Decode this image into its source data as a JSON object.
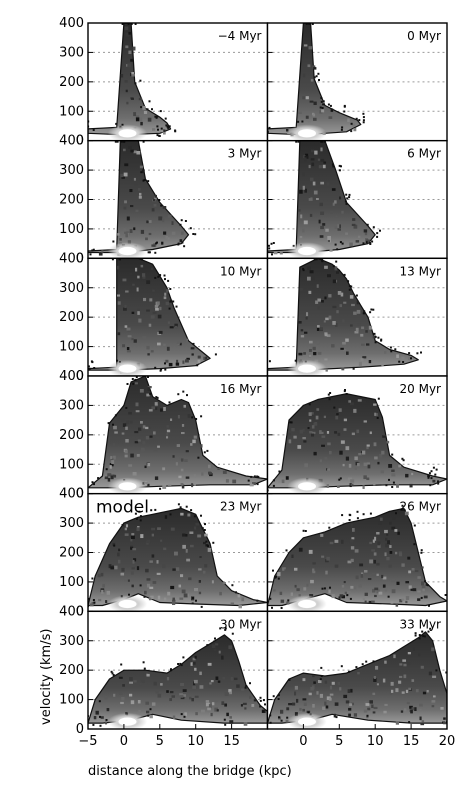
{
  "chart_data": {
    "type": "heatmap",
    "description_note": "",
    "xlabel": "distance along the bridge (kpc)",
    "ylabel": "velocity (km/s)",
    "xlim": [
      -5,
      20
    ],
    "ylim": [
      0,
      400
    ],
    "x_ticks": [
      -5,
      0,
      5,
      10,
      15,
      20
    ],
    "y_ticks": [
      0,
      100,
      200,
      300,
      400
    ],
    "grid": "horizontal dashed at 100, 200, 300 km/s",
    "colormap": "white-gray-black",
    "panels": [
      {
        "label": "−4 Myr",
        "model": false,
        "envelope": [
          [
            -5,
            40
          ],
          [
            -1,
            45
          ],
          [
            0,
            420
          ],
          [
            1,
            420
          ],
          [
            1.5,
            200
          ],
          [
            3,
            110
          ],
          [
            5,
            80
          ],
          [
            6,
            60
          ],
          [
            6.5,
            40
          ],
          [
            5,
            25
          ],
          [
            0,
            20
          ],
          [
            -5,
            25
          ]
        ]
      },
      {
        "label": "0 Myr",
        "model": false,
        "envelope": [
          [
            -5,
            40
          ],
          [
            -1,
            45
          ],
          [
            0,
            420
          ],
          [
            1,
            420
          ],
          [
            1.5,
            210
          ],
          [
            3,
            120
          ],
          [
            5,
            95
          ],
          [
            7.5,
            70
          ],
          [
            8,
            55
          ],
          [
            6,
            30
          ],
          [
            0,
            20
          ],
          [
            -5,
            25
          ]
        ]
      },
      {
        "label": "3 Myr",
        "model": false,
        "envelope": [
          [
            -5,
            25
          ],
          [
            -1,
            30
          ],
          [
            -0.5,
            420
          ],
          [
            2,
            420
          ],
          [
            3,
            270
          ],
          [
            5,
            190
          ],
          [
            8,
            110
          ],
          [
            9,
            80
          ],
          [
            8,
            50
          ],
          [
            4,
            30
          ],
          [
            0,
            20
          ],
          [
            -5,
            20
          ]
        ]
      },
      {
        "label": "6 Myr",
        "model": false,
        "envelope": [
          [
            -5,
            25
          ],
          [
            -1,
            30
          ],
          [
            -0.5,
            420
          ],
          [
            3,
            400
          ],
          [
            4.5,
            300
          ],
          [
            6,
            190
          ],
          [
            9,
            110
          ],
          [
            10,
            80
          ],
          [
            9,
            50
          ],
          [
            5,
            30
          ],
          [
            0,
            20
          ],
          [
            -5,
            20
          ]
        ]
      },
      {
        "label": "10 Myr",
        "model": false,
        "envelope": [
          [
            -5,
            25
          ],
          [
            -1,
            30
          ],
          [
            -1,
            410
          ],
          [
            2,
            400
          ],
          [
            4,
            380
          ],
          [
            5,
            340
          ],
          [
            6,
            300
          ],
          [
            7,
            230
          ],
          [
            9,
            120
          ],
          [
            11,
            80
          ],
          [
            12,
            60
          ],
          [
            10,
            35
          ],
          [
            5,
            25
          ],
          [
            0,
            20
          ],
          [
            -5,
            20
          ]
        ]
      },
      {
        "label": "13 Myr",
        "model": false,
        "envelope": [
          [
            -5,
            25
          ],
          [
            -1,
            30
          ],
          [
            -0.5,
            370
          ],
          [
            2,
            400
          ],
          [
            4,
            380
          ],
          [
            5,
            360
          ],
          [
            6,
            330
          ],
          [
            7,
            280
          ],
          [
            8,
            240
          ],
          [
            9,
            200
          ],
          [
            10,
            120
          ],
          [
            12,
            90
          ],
          [
            15,
            70
          ],
          [
            16,
            55
          ],
          [
            14,
            40
          ],
          [
            8,
            30
          ],
          [
            0,
            20
          ],
          [
            -5,
            20
          ]
        ]
      },
      {
        "label": "16 Myr",
        "model": false,
        "envelope": [
          [
            -5,
            20
          ],
          [
            -3,
            60
          ],
          [
            -2,
            240
          ],
          [
            0,
            300
          ],
          [
            1,
            380
          ],
          [
            3,
            400
          ],
          [
            4,
            330
          ],
          [
            6,
            300
          ],
          [
            8,
            320
          ],
          [
            9,
            310
          ],
          [
            10,
            250
          ],
          [
            11,
            130
          ],
          [
            13,
            90
          ],
          [
            17,
            60
          ],
          [
            20,
            50
          ],
          [
            18,
            30
          ],
          [
            12,
            30
          ],
          [
            5,
            25
          ],
          [
            0,
            20
          ],
          [
            -5,
            20
          ]
        ]
      },
      {
        "label": "20 Myr",
        "model": false,
        "envelope": [
          [
            -5,
            20
          ],
          [
            -3,
            80
          ],
          [
            -2,
            250
          ],
          [
            0,
            300
          ],
          [
            2,
            320
          ],
          [
            4,
            330
          ],
          [
            6,
            340
          ],
          [
            8,
            330
          ],
          [
            10,
            320
          ],
          [
            11,
            260
          ],
          [
            12,
            130
          ],
          [
            14,
            90
          ],
          [
            18,
            60
          ],
          [
            20,
            50
          ],
          [
            18,
            30
          ],
          [
            12,
            30
          ],
          [
            5,
            25
          ],
          [
            0,
            20
          ],
          [
            -5,
            20
          ]
        ]
      },
      {
        "label": "23 Myr",
        "model": true,
        "envelope": [
          [
            -5,
            20
          ],
          [
            -4,
            120
          ],
          [
            -2,
            230
          ],
          [
            0,
            300
          ],
          [
            2,
            320
          ],
          [
            4,
            330
          ],
          [
            6,
            340
          ],
          [
            8,
            350
          ],
          [
            10,
            330
          ],
          [
            11,
            280
          ],
          [
            12,
            230
          ],
          [
            13,
            120
          ],
          [
            15,
            70
          ],
          [
            18,
            40
          ],
          [
            20,
            30
          ],
          [
            16,
            20
          ],
          [
            10,
            25
          ],
          [
            5,
            30
          ],
          [
            2,
            60
          ],
          [
            0,
            40
          ],
          [
            -3,
            20
          ],
          [
            -5,
            20
          ]
        ]
      },
      {
        "label": "26 Myr",
        "model": false,
        "envelope": [
          [
            -5,
            20
          ],
          [
            -4,
            120
          ],
          [
            -2,
            200
          ],
          [
            0,
            250
          ],
          [
            3,
            270
          ],
          [
            6,
            300
          ],
          [
            8,
            310
          ],
          [
            10,
            320
          ],
          [
            12,
            340
          ],
          [
            14,
            350
          ],
          [
            15,
            300
          ],
          [
            16,
            200
          ],
          [
            17,
            100
          ],
          [
            19,
            50
          ],
          [
            20,
            35
          ],
          [
            17,
            20
          ],
          [
            12,
            25
          ],
          [
            6,
            30
          ],
          [
            3,
            60
          ],
          [
            0,
            40
          ],
          [
            -3,
            20
          ],
          [
            -5,
            20
          ]
        ]
      },
      {
        "label": "30 Myr",
        "model": false,
        "envelope": [
          [
            -5,
            20
          ],
          [
            -4,
            100
          ],
          [
            -2,
            170
          ],
          [
            0,
            200
          ],
          [
            3,
            200
          ],
          [
            6,
            190
          ],
          [
            8,
            220
          ],
          [
            10,
            260
          ],
          [
            12,
            290
          ],
          [
            14,
            320
          ],
          [
            15,
            300
          ],
          [
            16,
            230
          ],
          [
            17,
            150
          ],
          [
            19,
            80
          ],
          [
            20,
            60
          ],
          [
            20,
            20
          ],
          [
            14,
            20
          ],
          [
            8,
            30
          ],
          [
            4,
            50
          ],
          [
            1,
            30
          ],
          [
            -3,
            20
          ],
          [
            -5,
            20
          ]
        ]
      },
      {
        "label": "33 Myr",
        "model": false,
        "envelope": [
          [
            -5,
            20
          ],
          [
            -4,
            100
          ],
          [
            -2,
            170
          ],
          [
            0,
            190
          ],
          [
            3,
            180
          ],
          [
            6,
            190
          ],
          [
            8,
            210
          ],
          [
            10,
            230
          ],
          [
            12,
            250
          ],
          [
            14,
            280
          ],
          [
            16,
            310
          ],
          [
            17,
            330
          ],
          [
            18,
            300
          ],
          [
            19,
            200
          ],
          [
            20,
            120
          ],
          [
            20,
            20
          ],
          [
            15,
            20
          ],
          [
            9,
            30
          ],
          [
            4,
            50
          ],
          [
            1,
            30
          ],
          [
            -3,
            20
          ],
          [
            -5,
            20
          ]
        ]
      }
    ]
  }
}
